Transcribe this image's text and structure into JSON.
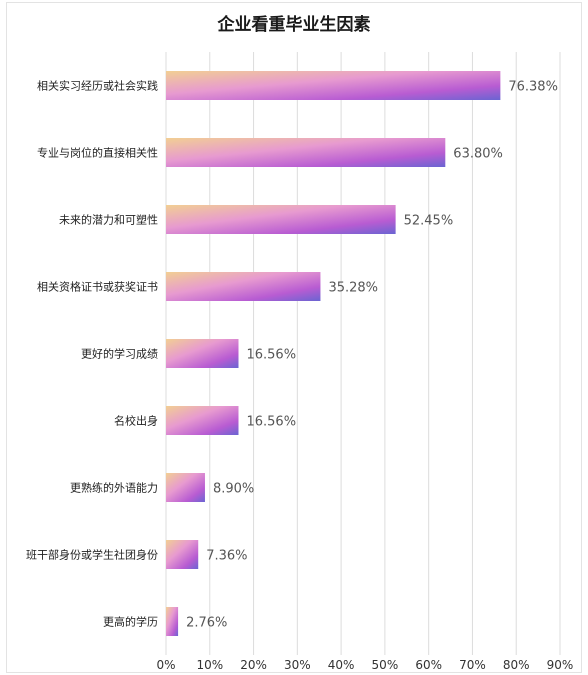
{
  "chart_data": {
    "type": "bar",
    "orientation": "horizontal",
    "title": "企业看重毕业生因素",
    "categories": [
      "相关实习经历或社会实践",
      "专业与岗位的直接相关性",
      "未来的潜力和可塑性",
      "相关资格证书或获奖证书",
      "更好的学习成绩",
      "名校出身",
      "更熟练的外语能力",
      "班干部身份或学生社团身份",
      "更高的学历"
    ],
    "values": [
      76.38,
      63.8,
      52.45,
      35.28,
      16.56,
      16.56,
      8.9,
      7.36,
      2.76
    ],
    "value_labels": [
      "76.38%",
      "63.80%",
      "52.45%",
      "35.28%",
      "16.56%",
      "16.56%",
      "8.90%",
      "7.36%",
      "2.76%"
    ],
    "xlim": [
      0,
      90
    ],
    "x_ticks": [
      "0%",
      "10%",
      "20%",
      "30%",
      "40%",
      "50%",
      "60%",
      "70%",
      "80%",
      "90%"
    ],
    "grid": true,
    "legend": "none",
    "colors": {
      "bar_gradient": [
        "#f2cf93",
        "#e79ad0",
        "#b85cd2",
        "#6a64d2"
      ],
      "grid": "#dcdcdc",
      "value_text": "#555555"
    }
  }
}
